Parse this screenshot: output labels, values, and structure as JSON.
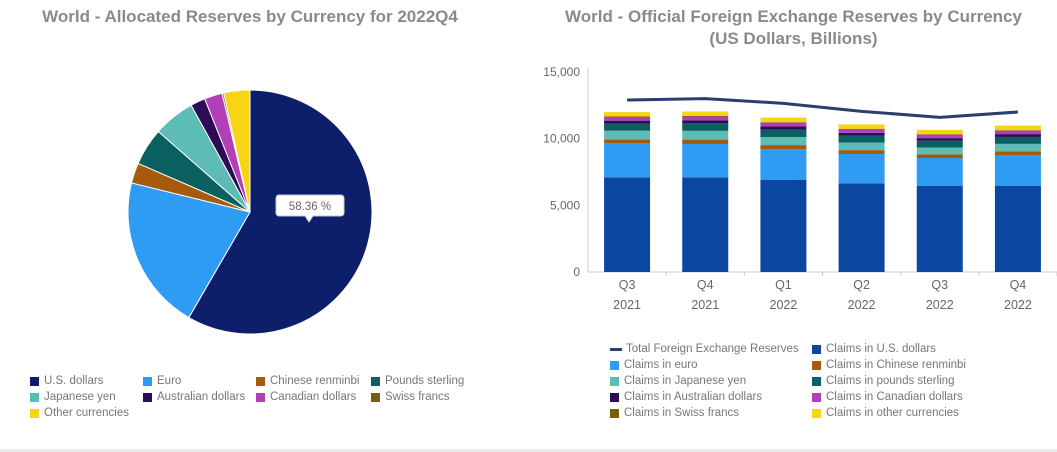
{
  "pie_panel": {
    "title": "World - Allocated Reserves by Currency for 2022Q4",
    "tooltip": "58.36 %"
  },
  "bar_panel": {
    "title_line1": "World - Official Foreign Exchange Reserves by Currency",
    "title_line2": "(US Dollars, Billions)"
  },
  "chart_data": [
    {
      "type": "pie",
      "title": "World - Allocated Reserves by Currency for 2022Q4",
      "slices": [
        {
          "label": "U.S. dollars",
          "value": 58.36,
          "color": "#0d1f6b"
        },
        {
          "label": "Euro",
          "value": 20.47,
          "color": "#2e9cf2"
        },
        {
          "label": "Chinese renminbi",
          "value": 2.69,
          "color": "#a65a0c"
        },
        {
          "label": "Pounds sterling",
          "value": 4.95,
          "color": "#0a5f61"
        },
        {
          "label": "Japanese yen",
          "value": 5.51,
          "color": "#5dbdb5"
        },
        {
          "label": "Australian dollars",
          "value": 1.96,
          "color": "#2d0b57"
        },
        {
          "label": "Canadian dollars",
          "value": 2.38,
          "color": "#b13fb6"
        },
        {
          "label": "Swiss francs",
          "value": 0.23,
          "color": "#7a5c10"
        },
        {
          "label": "Other currencies",
          "value": 3.45,
          "color": "#f7d414"
        }
      ],
      "tooltip": "58.36 %"
    },
    {
      "type": "bar",
      "stacked": true,
      "title": "World - Official Foreign Exchange Reserves by Currency",
      "subtitle": "(US Dollars, Billions)",
      "categories": [
        [
          "Q3",
          "2021"
        ],
        [
          "Q4",
          "2021"
        ],
        [
          "Q1",
          "2022"
        ],
        [
          "Q2",
          "2022"
        ],
        [
          "Q3",
          "2022"
        ],
        [
          "Q4",
          "2022"
        ]
      ],
      "ylim": [
        0,
        15000
      ],
      "yticks": [
        0,
        5000,
        10000,
        15000
      ],
      "ytick_labels": [
        "0",
        "5,000",
        "10,000",
        "15,000"
      ],
      "grid": false,
      "line_series": {
        "name": "Total Foreign Exchange Reserves",
        "color": "#2a3f6e",
        "values": [
          12900,
          13000,
          12650,
          12050,
          11600,
          12000
        ]
      },
      "series": [
        {
          "name": "Claims in U.S. dollars",
          "color": "#0b46a0",
          "values": [
            7100,
            7100,
            6900,
            6650,
            6450,
            6450
          ]
        },
        {
          "name": "Claims in euro",
          "color": "#2e9cf2",
          "values": [
            2550,
            2500,
            2300,
            2200,
            2100,
            2300
          ]
        },
        {
          "name": "Claims in Chinese renminbi",
          "color": "#a65a0c",
          "values": [
            300,
            330,
            320,
            290,
            270,
            300
          ]
        },
        {
          "name": "Claims in Japanese yen",
          "color": "#5dbdb5",
          "values": [
            650,
            660,
            600,
            570,
            520,
            560
          ]
        },
        {
          "name": "Claims in pounds sterling",
          "color": "#0a5f61",
          "values": [
            530,
            560,
            560,
            520,
            500,
            520
          ]
        },
        {
          "name": "Claims in Australian dollars",
          "color": "#2d0b57",
          "values": [
            220,
            230,
            230,
            210,
            200,
            210
          ]
        },
        {
          "name": "Claims in Canadian dollars",
          "color": "#b13fb6",
          "values": [
            290,
            300,
            300,
            280,
            270,
            270
          ]
        },
        {
          "name": "Claims in Swiss francs",
          "color": "#7a5c10",
          "values": [
            20,
            20,
            20,
            20,
            20,
            20
          ]
        },
        {
          "name": "Claims in other currencies",
          "color": "#f7d414",
          "values": [
            330,
            340,
            350,
            330,
            330,
            350
          ]
        }
      ]
    }
  ]
}
